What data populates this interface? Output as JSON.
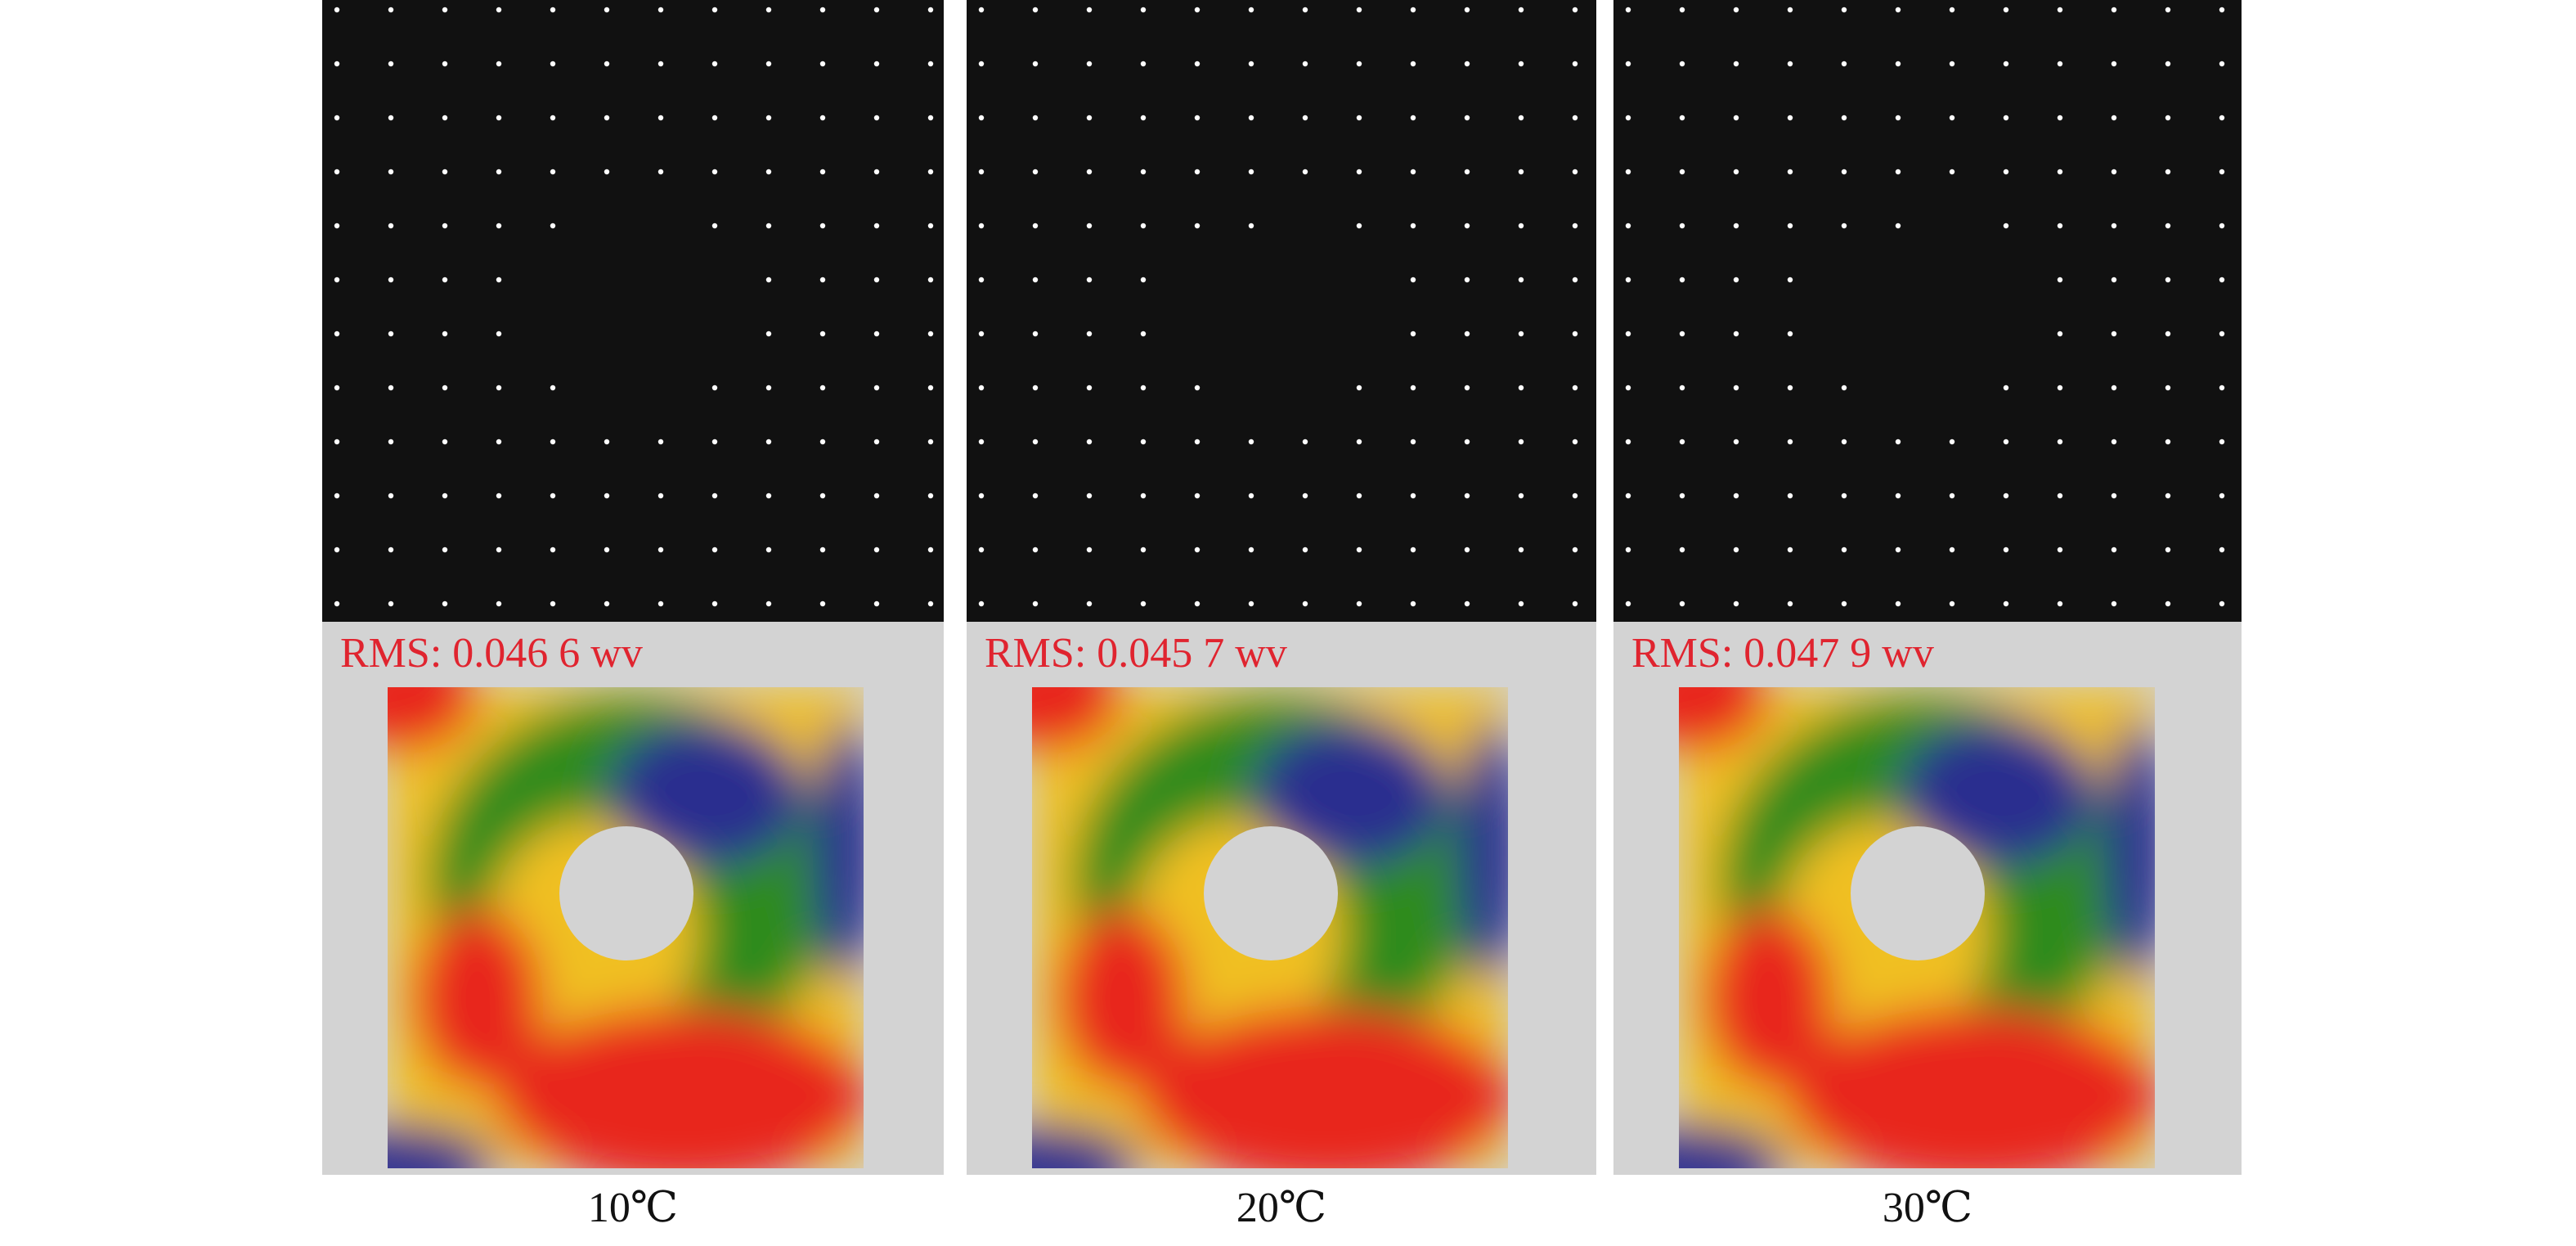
{
  "colors": {
    "spot_background": "#111111",
    "spot": "#ffffff",
    "wavefront_background": "#d3d3d3",
    "rms_text": "#e0242f",
    "low": "#2b2f8f",
    "mid": "#2e8b1e",
    "high": "#f0c020",
    "peak": "#e8281c"
  },
  "panels": [
    {
      "rms": "RMS: 0.046 6 wv",
      "temperature": "10℃"
    },
    {
      "rms": "RMS: 0.045 7 wv",
      "temperature": "20℃"
    },
    {
      "rms": "RMS: 0.047 9 wv",
      "temperature": "30℃"
    }
  ]
}
